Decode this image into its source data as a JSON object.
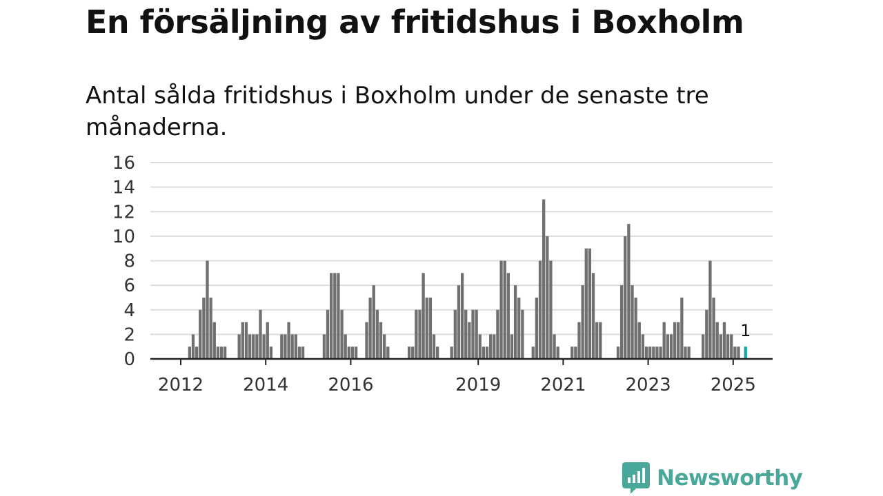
{
  "title": "En försäljning av fritidshus i Boxholm",
  "subtitle": "Antal sålda fritidshus i Boxholm under de senaste tre månaderna.",
  "brand": {
    "name": "Newsworthy",
    "color": "#4aa89a",
    "icon": "newsworthy-chat-bars-icon"
  },
  "colors": {
    "bar": "#707070",
    "highlight": "#17a8a1",
    "axis": "#222222",
    "grid": "#dddddd"
  },
  "chart_data": {
    "type": "bar",
    "title": "",
    "xlabel": "",
    "ylabel": "",
    "ylim": [
      0,
      16
    ],
    "yticks": [
      0,
      2,
      4,
      6,
      8,
      10,
      12,
      14,
      16
    ],
    "grid": true,
    "x_ticks": [
      "2012",
      "2014",
      "2016",
      "2019",
      "2021",
      "2023",
      "2025"
    ],
    "series": [
      {
        "name": "",
        "points": [
          [
            "2012-03",
            1
          ],
          [
            "2012-04",
            2
          ],
          [
            "2012-05",
            1
          ],
          [
            "2012-06",
            4
          ],
          [
            "2012-07",
            5
          ],
          [
            "2012-08",
            8
          ],
          [
            "2012-09",
            5
          ],
          [
            "2012-10",
            3
          ],
          [
            "2012-11",
            1
          ],
          [
            "2012-12",
            1
          ],
          [
            "2013-01",
            1
          ],
          [
            "2013-05",
            2
          ],
          [
            "2013-06",
            3
          ],
          [
            "2013-07",
            3
          ],
          [
            "2013-08",
            2
          ],
          [
            "2013-09",
            2
          ],
          [
            "2013-10",
            2
          ],
          [
            "2013-11",
            4
          ],
          [
            "2013-12",
            2
          ],
          [
            "2014-01",
            3
          ],
          [
            "2014-02",
            1
          ],
          [
            "2014-05",
            2
          ],
          [
            "2014-06",
            2
          ],
          [
            "2014-07",
            3
          ],
          [
            "2014-08",
            2
          ],
          [
            "2014-09",
            2
          ],
          [
            "2014-10",
            1
          ],
          [
            "2014-11",
            1
          ],
          [
            "2015-05",
            2
          ],
          [
            "2015-06",
            4
          ],
          [
            "2015-07",
            7
          ],
          [
            "2015-08",
            7
          ],
          [
            "2015-09",
            7
          ],
          [
            "2015-10",
            4
          ],
          [
            "2015-11",
            2
          ],
          [
            "2015-12",
            1
          ],
          [
            "2016-01",
            1
          ],
          [
            "2016-02",
            1
          ],
          [
            "2016-05",
            3
          ],
          [
            "2016-06",
            5
          ],
          [
            "2016-07",
            6
          ],
          [
            "2016-08",
            4
          ],
          [
            "2016-09",
            3
          ],
          [
            "2016-10",
            2
          ],
          [
            "2016-11",
            1
          ],
          [
            "2017-05",
            1
          ],
          [
            "2017-06",
            1
          ],
          [
            "2017-07",
            4
          ],
          [
            "2017-08",
            4
          ],
          [
            "2017-09",
            7
          ],
          [
            "2017-10",
            5
          ],
          [
            "2017-11",
            5
          ],
          [
            "2017-12",
            2
          ],
          [
            "2018-01",
            1
          ],
          [
            "2018-05",
            1
          ],
          [
            "2018-06",
            4
          ],
          [
            "2018-07",
            6
          ],
          [
            "2018-08",
            7
          ],
          [
            "2018-09",
            4
          ],
          [
            "2018-10",
            3
          ],
          [
            "2018-11",
            4
          ],
          [
            "2018-12",
            4
          ],
          [
            "2019-01",
            2
          ],
          [
            "2019-02",
            1
          ],
          [
            "2019-03",
            1
          ],
          [
            "2019-04",
            2
          ],
          [
            "2019-05",
            2
          ],
          [
            "2019-06",
            4
          ],
          [
            "2019-07",
            8
          ],
          [
            "2019-08",
            8
          ],
          [
            "2019-09",
            7
          ],
          [
            "2019-10",
            2
          ],
          [
            "2019-11",
            6
          ],
          [
            "2019-12",
            5
          ],
          [
            "2020-01",
            4
          ],
          [
            "2020-04",
            1
          ],
          [
            "2020-05",
            5
          ],
          [
            "2020-06",
            8
          ],
          [
            "2020-07",
            13
          ],
          [
            "2020-08",
            10
          ],
          [
            "2020-09",
            8
          ],
          [
            "2020-10",
            2
          ],
          [
            "2020-11",
            1
          ],
          [
            "2021-03",
            1
          ],
          [
            "2021-04",
            1
          ],
          [
            "2021-05",
            3
          ],
          [
            "2021-06",
            6
          ],
          [
            "2021-07",
            9
          ],
          [
            "2021-08",
            9
          ],
          [
            "2021-09",
            7
          ],
          [
            "2021-10",
            3
          ],
          [
            "2021-11",
            3
          ],
          [
            "2022-04",
            1
          ],
          [
            "2022-05",
            6
          ],
          [
            "2022-06",
            10
          ],
          [
            "2022-07",
            11
          ],
          [
            "2022-08",
            6
          ],
          [
            "2022-09",
            5
          ],
          [
            "2022-10",
            3
          ],
          [
            "2022-11",
            2
          ],
          [
            "2022-12",
            1
          ],
          [
            "2023-01",
            1
          ],
          [
            "2023-02",
            1
          ],
          [
            "2023-03",
            1
          ],
          [
            "2023-04",
            1
          ],
          [
            "2023-05",
            3
          ],
          [
            "2023-06",
            2
          ],
          [
            "2023-07",
            2
          ],
          [
            "2023-08",
            3
          ],
          [
            "2023-09",
            3
          ],
          [
            "2023-10",
            5
          ],
          [
            "2023-11",
            1
          ],
          [
            "2023-12",
            1
          ],
          [
            "2024-04",
            2
          ],
          [
            "2024-05",
            4
          ],
          [
            "2024-06",
            8
          ],
          [
            "2024-07",
            5
          ],
          [
            "2024-08",
            3
          ],
          [
            "2024-09",
            2
          ],
          [
            "2024-10",
            3
          ],
          [
            "2024-11",
            2
          ],
          [
            "2024-12",
            2
          ],
          [
            "2025-01",
            1
          ],
          [
            "2025-02",
            1
          ]
        ]
      }
    ],
    "highlight": {
      "x": "2025-04",
      "value": 1,
      "label": "1"
    }
  }
}
